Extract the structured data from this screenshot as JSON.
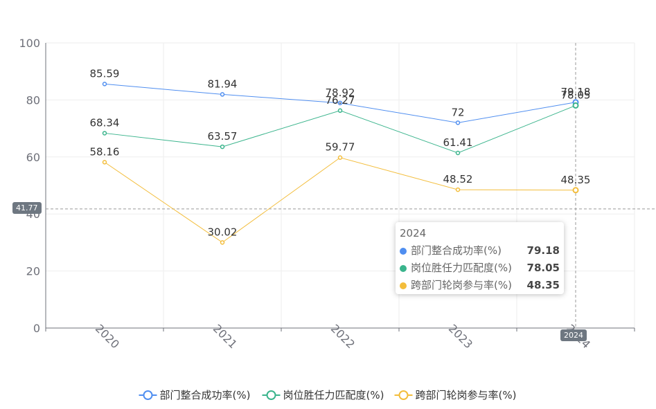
{
  "chart_data": {
    "type": "line",
    "categories": [
      "2020",
      "2021",
      "2022",
      "2023",
      "2024"
    ],
    "ylim": [
      0,
      100
    ],
    "yticks": [
      0,
      20,
      40,
      60,
      80,
      100
    ],
    "grid": true,
    "legend_position": "bottom",
    "series": [
      {
        "name": "部门整合成功率(%)",
        "color": "#4f8ef0",
        "values": [
          85.59,
          81.94,
          78.92,
          72,
          79.18
        ]
      },
      {
        "name": "岗位胜任力匹配度(%)",
        "color": "#3ab48c",
        "values": [
          68.34,
          63.57,
          76.27,
          61.41,
          78.05
        ]
      },
      {
        "name": "跨部门轮岗参与率(%)",
        "color": "#f3bd3b",
        "values": [
          58.16,
          30.02,
          59.77,
          48.52,
          48.35
        ]
      }
    ],
    "crosshair": {
      "y_value": 41.77,
      "y_label": "41.77",
      "x_label": "2024"
    },
    "tooltip": {
      "title": "2024",
      "rows": [
        {
          "name": "部门整合成功率(%)",
          "value": "79.18",
          "color": "#4f8ef0"
        },
        {
          "name": "岗位胜任力匹配度(%)",
          "value": "78.05",
          "color": "#3ab48c"
        },
        {
          "name": "跨部门轮岗参与率(%)",
          "value": "48.35",
          "color": "#f3bd3b"
        }
      ]
    }
  }
}
